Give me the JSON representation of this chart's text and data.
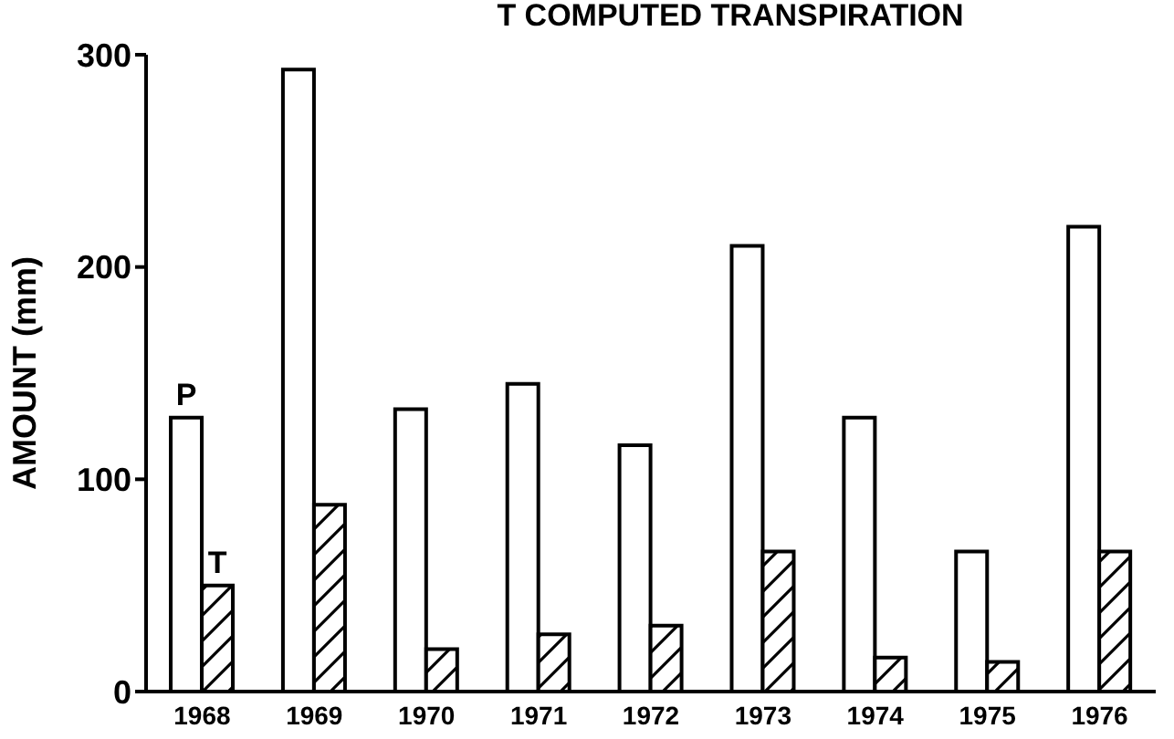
{
  "chart_data": {
    "type": "bar",
    "title": "T  COMPUTED TRANSPIRATION",
    "ylabel": "AMOUNT (mm)",
    "categories": [
      "1968",
      "1969",
      "1970",
      "1971",
      "1972",
      "1973",
      "1974",
      "1975",
      "1976"
    ],
    "series": [
      {
        "name": "P",
        "color": "#ffffff",
        "values": [
          129,
          293,
          133,
          145,
          116,
          210,
          129,
          66,
          219
        ]
      },
      {
        "name": "T",
        "color": "#000000",
        "values": [
          50,
          88,
          20,
          27,
          31,
          66,
          16,
          14,
          66
        ]
      }
    ],
    "ylim": [
      0,
      300
    ],
    "yticks": [
      0,
      100,
      200,
      300
    ],
    "grid": false,
    "legend": false
  }
}
